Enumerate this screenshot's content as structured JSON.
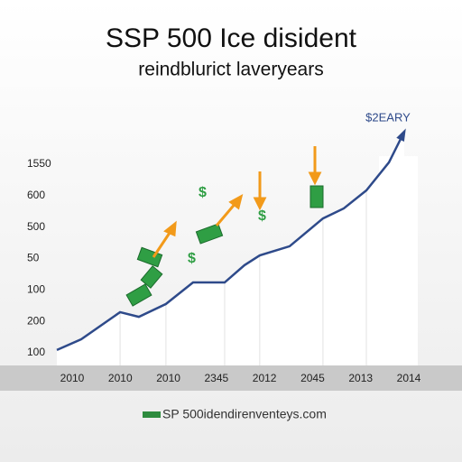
{
  "chart_data": {
    "type": "line",
    "title": "SSP 500 Ice disident",
    "subtitle": "reindblurict laveryears",
    "annotation": "$2EARY",
    "footer": "SP 500idendirenventeys.com",
    "x_labels": [
      "2010",
      "2010",
      "2010",
      "2345",
      "2012",
      "2045",
      "2013",
      "2014"
    ],
    "y_labels": [
      "1550",
      "600",
      "500",
      "50",
      "100",
      "200",
      "100"
    ],
    "x": [
      0,
      7,
      18.2,
      23.6,
      31.4,
      39.2,
      48.3,
      54,
      58.4,
      67,
      76.6,
      82.6,
      89.1,
      95.6,
      100
    ],
    "values": [
      6.6,
      11.2,
      22.8,
      20.8,
      26.3,
      35.5,
      35.5,
      42.9,
      47.1,
      51,
      62.9,
      67.2,
      74.9,
      86.9,
      100
    ],
    "xlim": [
      0,
      100
    ],
    "ylim": [
      0,
      100
    ],
    "color": "#2e4a8a"
  }
}
